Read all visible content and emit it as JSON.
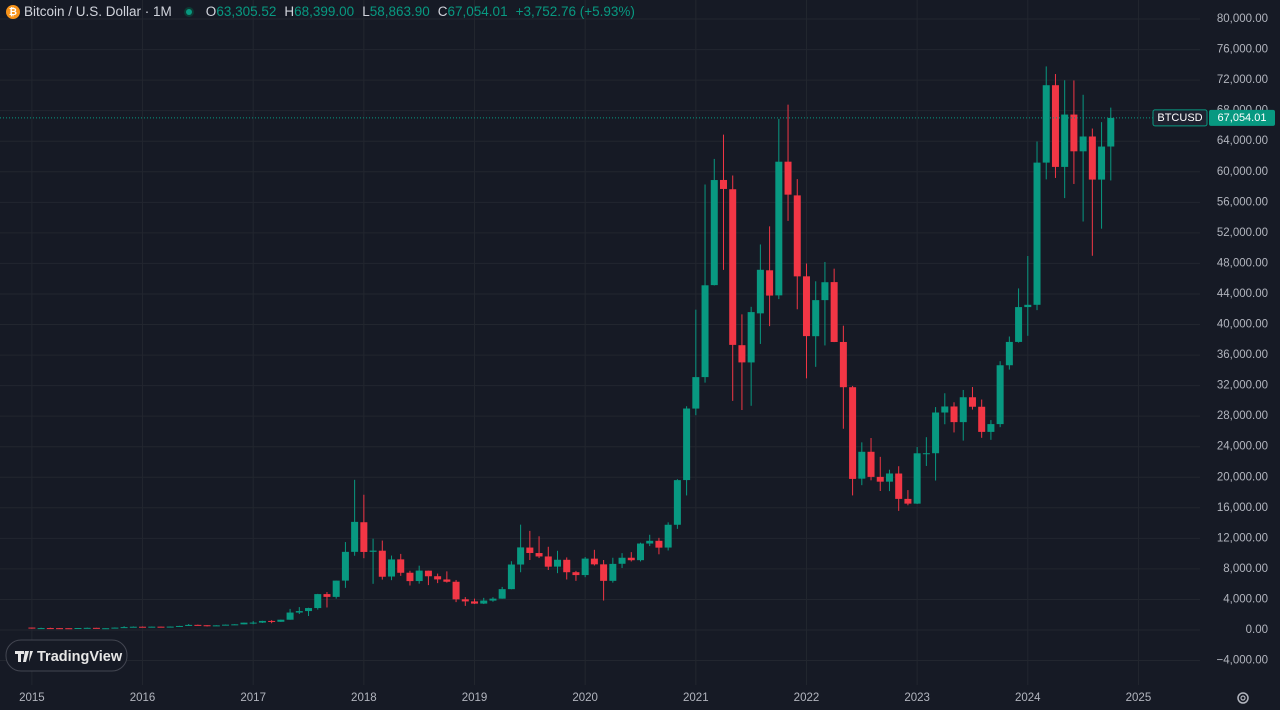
{
  "chart_data": {
    "type": "candlestick",
    "header": {
      "symbol": "Bitcoin / U.S. Dollar · 1M",
      "o_key": "O",
      "o": "63,305.52",
      "h_key": "H",
      "h": "68,399.00",
      "l_key": "L",
      "l": "58,863.90",
      "c_key": "C",
      "c": "67,054.01",
      "change": "+3,752.76 (+5.93%)"
    },
    "watermark": "TradingView",
    "last_price_name": "BTCUSD",
    "last_price": {
      "value": 67054.01,
      "label": "67,054.01"
    },
    "up_color": "#089981",
    "down_color": "#f23645",
    "x": [
      "2015-01",
      "2015-02",
      "2015-03",
      "2015-04",
      "2015-05",
      "2015-06",
      "2015-07",
      "2015-08",
      "2015-09",
      "2015-10",
      "2015-11",
      "2015-12",
      "2016-01",
      "2016-02",
      "2016-03",
      "2016-04",
      "2016-05",
      "2016-06",
      "2016-07",
      "2016-08",
      "2016-09",
      "2016-10",
      "2016-11",
      "2016-12",
      "2017-01",
      "2017-02",
      "2017-03",
      "2017-04",
      "2017-05",
      "2017-06",
      "2017-07",
      "2017-08",
      "2017-09",
      "2017-10",
      "2017-11",
      "2017-12",
      "2018-01",
      "2018-02",
      "2018-03",
      "2018-04",
      "2018-05",
      "2018-06",
      "2018-07",
      "2018-08",
      "2018-09",
      "2018-10",
      "2018-11",
      "2018-12",
      "2019-01",
      "2019-02",
      "2019-03",
      "2019-04",
      "2019-05",
      "2019-06",
      "2019-07",
      "2019-08",
      "2019-09",
      "2019-10",
      "2019-11",
      "2019-12",
      "2020-01",
      "2020-02",
      "2020-03",
      "2020-04",
      "2020-05",
      "2020-06",
      "2020-07",
      "2020-08",
      "2020-09",
      "2020-10",
      "2020-11",
      "2020-12",
      "2021-01",
      "2021-02",
      "2021-03",
      "2021-04",
      "2021-05",
      "2021-06",
      "2021-07",
      "2021-08",
      "2021-09",
      "2021-10",
      "2021-11",
      "2021-12",
      "2022-01",
      "2022-02",
      "2022-03",
      "2022-04",
      "2022-05",
      "2022-06",
      "2022-07",
      "2022-08",
      "2022-09",
      "2022-10",
      "2022-11",
      "2022-12",
      "2023-01",
      "2023-02",
      "2023-03",
      "2023-04",
      "2023-05",
      "2023-06",
      "2023-07",
      "2023-08",
      "2023-09",
      "2023-10",
      "2023-11",
      "2023-12",
      "2024-01",
      "2024-02",
      "2024-03",
      "2024-04",
      "2024-05",
      "2024-06",
      "2024-07",
      "2024-08",
      "2024-09",
      "2024-10"
    ],
    "open": [
      320,
      217,
      254,
      244,
      236,
      230,
      263,
      284,
      230,
      236,
      314,
      378,
      430,
      368,
      437,
      416,
      448,
      531,
      673,
      624,
      573,
      608,
      700,
      743,
      964,
      970,
      1190,
      1079,
      1348,
      2286,
      2480,
      2875,
      4703,
      4338,
      6468,
      10233,
      14112,
      10237,
      10385,
      7003,
      9251,
      7500,
      6411,
      7769,
      7044,
      6619,
      6318,
      4025,
      3746,
      3460,
      3853,
      4105,
      5351,
      8574,
      10796,
      10077,
      9630,
      8300,
      9193,
      7571,
      7194,
      9346,
      8599,
      6438,
      8672,
      9463,
      9145,
      11322,
      11679,
      10796,
      13780,
      19633,
      28994,
      33114,
      45159,
      58926,
      57714,
      37293,
      35035,
      41460,
      47099,
      43816,
      61320,
      56907,
      46311,
      38471,
      43194,
      45554,
      37714,
      31792,
      19820,
      23336,
      20050,
      19423,
      20490,
      17168,
      16547,
      23139,
      23147,
      28478,
      29268,
      27219,
      30477,
      29232,
      25940,
      26962,
      34667,
      37720,
      42283,
      42580,
      61198,
      71333,
      60636,
      67491,
      62678,
      64619,
      58974,
      63305.52
    ],
    "high": [
      320,
      300,
      300,
      261,
      247,
      268,
      315,
      285,
      246,
      335,
      503,
      467,
      460,
      446,
      439,
      470,
      550,
      780,
      704,
      626,
      627,
      714,
      761,
      968,
      1164,
      1211,
      1292,
      1353,
      2763,
      2999,
      2916,
      4736,
      4975,
      6470,
      11517,
      19666,
      17712,
      11958,
      11711,
      9745,
      9964,
      7754,
      8424,
      7769,
      7388,
      7680,
      6553,
      4310,
      4109,
      4210,
      4296,
      5642,
      9008,
      13796,
      12979,
      12273,
      10898,
      10370,
      9505,
      7743,
      9553,
      10500,
      9167,
      9460,
      10067,
      10199,
      11434,
      12468,
      12067,
      14100,
      19749,
      29300,
      41946,
      58330,
      61683,
      64863,
      59519,
      41330,
      42316,
      50482,
      52853,
      66930,
      68789,
      59041,
      47990,
      45661,
      48189,
      47313,
      39845,
      31957,
      24572,
      25135,
      22673,
      20988,
      21446,
      18318,
      23960,
      25250,
      29190,
      31000,
      29820,
      31431,
      31814,
      30176,
      27488,
      35198,
      38431,
      44729,
      48969,
      63968,
      73794,
      72797,
      71979,
      71958,
      70079,
      65660,
      66497,
      68399.0
    ],
    "low": [
      170,
      212,
      236,
      215,
      228,
      220,
      253,
      198,
      225,
      236,
      298,
      350,
      355,
      365,
      393,
      413,
      437,
      530,
      610,
      470,
      568,
      604,
      683,
      742,
      752,
      923,
      891,
      1063,
      1347,
      2092,
      1836,
      2668,
      2951,
      4108,
      5519,
      9723,
      9402,
      6048,
      6600,
      6526,
      7090,
      5826,
      6071,
      5880,
      6140,
      6210,
      3652,
      3157,
      3401,
      3400,
      3707,
      4096,
      5333,
      7564,
      9164,
      9421,
      7856,
      7446,
      6617,
      6435,
      6915,
      8450,
      3858,
      6202,
      8117,
      8975,
      8977,
      10989,
      9916,
      10416,
      13243,
      17619,
      28130,
      32384,
      45115,
      47159,
      30000,
      28805,
      29360,
      37458,
      39787,
      43320,
      53569,
      42000,
      32950,
      34459,
      37260,
      37697,
      26350,
      17622,
      18966,
      19600,
      18200,
      18190,
      15599,
      16333,
      16499,
      21480,
      19570,
      26942,
      25871,
      24800,
      28861,
      25166,
      24901,
      26560,
      34100,
      37630,
      38521,
      41880,
      59005,
      59191,
      56552,
      58402,
      53485,
      49000,
      52550,
      58863.9
    ],
    "close": [
      217,
      254,
      244,
      236,
      230,
      263,
      284,
      230,
      236,
      314,
      378,
      430,
      368,
      437,
      416,
      448,
      531,
      673,
      624,
      573,
      608,
      700,
      743,
      964,
      970,
      1190,
      1079,
      1348,
      2286,
      2480,
      2875,
      4703,
      4338,
      6468,
      10233,
      14157,
      10221,
      10397,
      6973,
      9240,
      7494,
      6404,
      7780,
      7037,
      6625,
      6318,
      4017,
      3743,
      3457,
      3854,
      4105,
      5351,
      8574,
      10817,
      10085,
      9630,
      8293,
      9199,
      7569,
      7193,
      9350,
      8599,
      6438,
      8658,
      9461,
      9138,
      11323,
      11680,
      10784,
      13781,
      19625,
      29001,
      33114,
      45137,
      58918,
      57750,
      37332,
      35040,
      41626,
      47166,
      43790,
      61318,
      57005,
      46306,
      38483,
      43193,
      45538,
      37714,
      31792,
      19785,
      23336,
      20049,
      19423,
      20495,
      17168,
      16547,
      23139,
      23147,
      28478,
      29268,
      27219,
      30477,
      29232,
      25940,
      26962,
      34667,
      37720,
      42283,
      42580,
      61198,
      71333,
      60636,
      67491,
      62678,
      64619,
      58974,
      63301,
      67054.01
    ],
    "xlim": [
      "2014-09",
      "2025-08"
    ],
    "xticks": [
      {
        "value": "2015-01",
        "label": "2015"
      },
      {
        "value": "2016-01",
        "label": "2016"
      },
      {
        "value": "2017-01",
        "label": "2017"
      },
      {
        "value": "2018-01",
        "label": "2018"
      },
      {
        "value": "2019-01",
        "label": "2019"
      },
      {
        "value": "2020-01",
        "label": "2020"
      },
      {
        "value": "2021-01",
        "label": "2021"
      },
      {
        "value": "2022-01",
        "label": "2022"
      },
      {
        "value": "2023-01",
        "label": "2023"
      },
      {
        "value": "2024-01",
        "label": "2024"
      },
      {
        "value": "2025-01",
        "label": "2025"
      }
    ],
    "ylim": [
      -7200,
      82490
    ],
    "yticks": [
      {
        "value": -4000,
        "label": "−4,000.00"
      },
      {
        "value": 0,
        "label": "0.00"
      },
      {
        "value": 4000,
        "label": "4,000.00"
      },
      {
        "value": 8000,
        "label": "8,000.00"
      },
      {
        "value": 12000,
        "label": "12,000.00"
      },
      {
        "value": 16000,
        "label": "16,000.00"
      },
      {
        "value": 20000,
        "label": "20,000.00"
      },
      {
        "value": 24000,
        "label": "24,000.00"
      },
      {
        "value": 28000,
        "label": "28,000.00"
      },
      {
        "value": 32000,
        "label": "32,000.00"
      },
      {
        "value": 36000,
        "label": "36,000.00"
      },
      {
        "value": 40000,
        "label": "40,000.00"
      },
      {
        "value": 44000,
        "label": "44,000.00"
      },
      {
        "value": 48000,
        "label": "48,000.00"
      },
      {
        "value": 52000,
        "label": "52,000.00"
      },
      {
        "value": 56000,
        "label": "56,000.00"
      },
      {
        "value": 60000,
        "label": "60,000.00"
      },
      {
        "value": 64000,
        "label": "64,000.00"
      },
      {
        "value": 68000,
        "label": "68,000.00"
      },
      {
        "value": 72000,
        "label": "72,000.00"
      },
      {
        "value": 76000,
        "label": "76,000.00"
      },
      {
        "value": 80000,
        "label": "80,000.00"
      }
    ],
    "grid": true
  }
}
